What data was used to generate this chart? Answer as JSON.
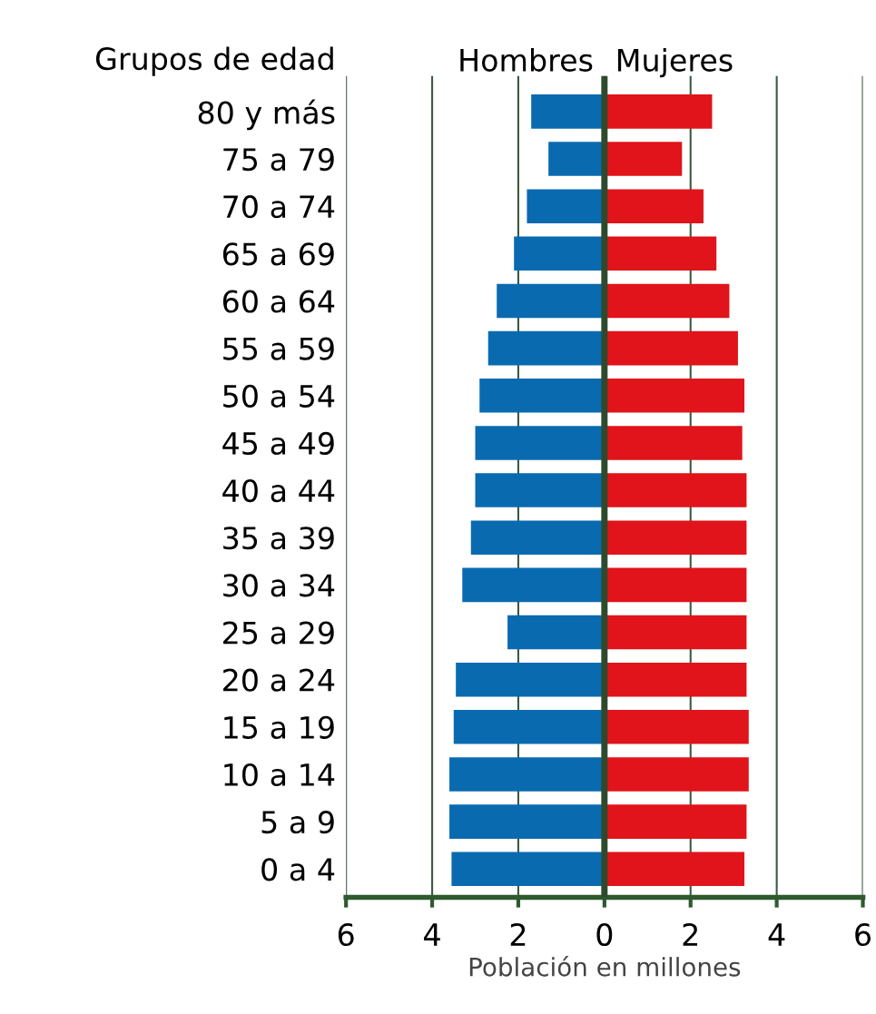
{
  "chart_data": {
    "type": "bar",
    "stacked": true,
    "orientation": "horizontal",
    "ylabel": "Grupos de edad",
    "xlabel": "Población en millones",
    "categories": [
      "80 y más",
      "75 a 79",
      "70 a 74",
      "65 a 69",
      "60 a 64",
      "55 a 59",
      "50 a 54",
      "45 a 49",
      "40 a 44",
      "35 a 39",
      "30 a 34",
      "25 a 29",
      "20 a 24",
      "15 a 19",
      "10 a 14",
      "5 a 9",
      "0 a 4"
    ],
    "series": [
      {
        "name": "Hombres",
        "color": "#0a6ab0",
        "values": [
          -1.7,
          -1.3,
          -1.8,
          -2.1,
          -2.5,
          -2.7,
          -2.9,
          -3.0,
          -3.0,
          -3.1,
          -3.3,
          -2.25,
          -3.45,
          -3.5,
          -3.6,
          -3.6,
          -3.55
        ]
      },
      {
        "name": "Mujeres",
        "color": "#e0141a",
        "values": [
          2.5,
          1.8,
          2.3,
          2.6,
          2.9,
          3.1,
          3.25,
          3.2,
          3.3,
          3.3,
          3.3,
          3.3,
          3.3,
          3.35,
          3.35,
          3.3,
          3.25
        ]
      }
    ],
    "xlim": [
      -6,
      6
    ],
    "xticks": [
      {
        "value": -6,
        "label": "6"
      },
      {
        "value": -4,
        "label": "4"
      },
      {
        "value": -2,
        "label": "2"
      },
      0,
      2,
      4,
      6
    ],
    "grid": "x",
    "legend": false
  }
}
